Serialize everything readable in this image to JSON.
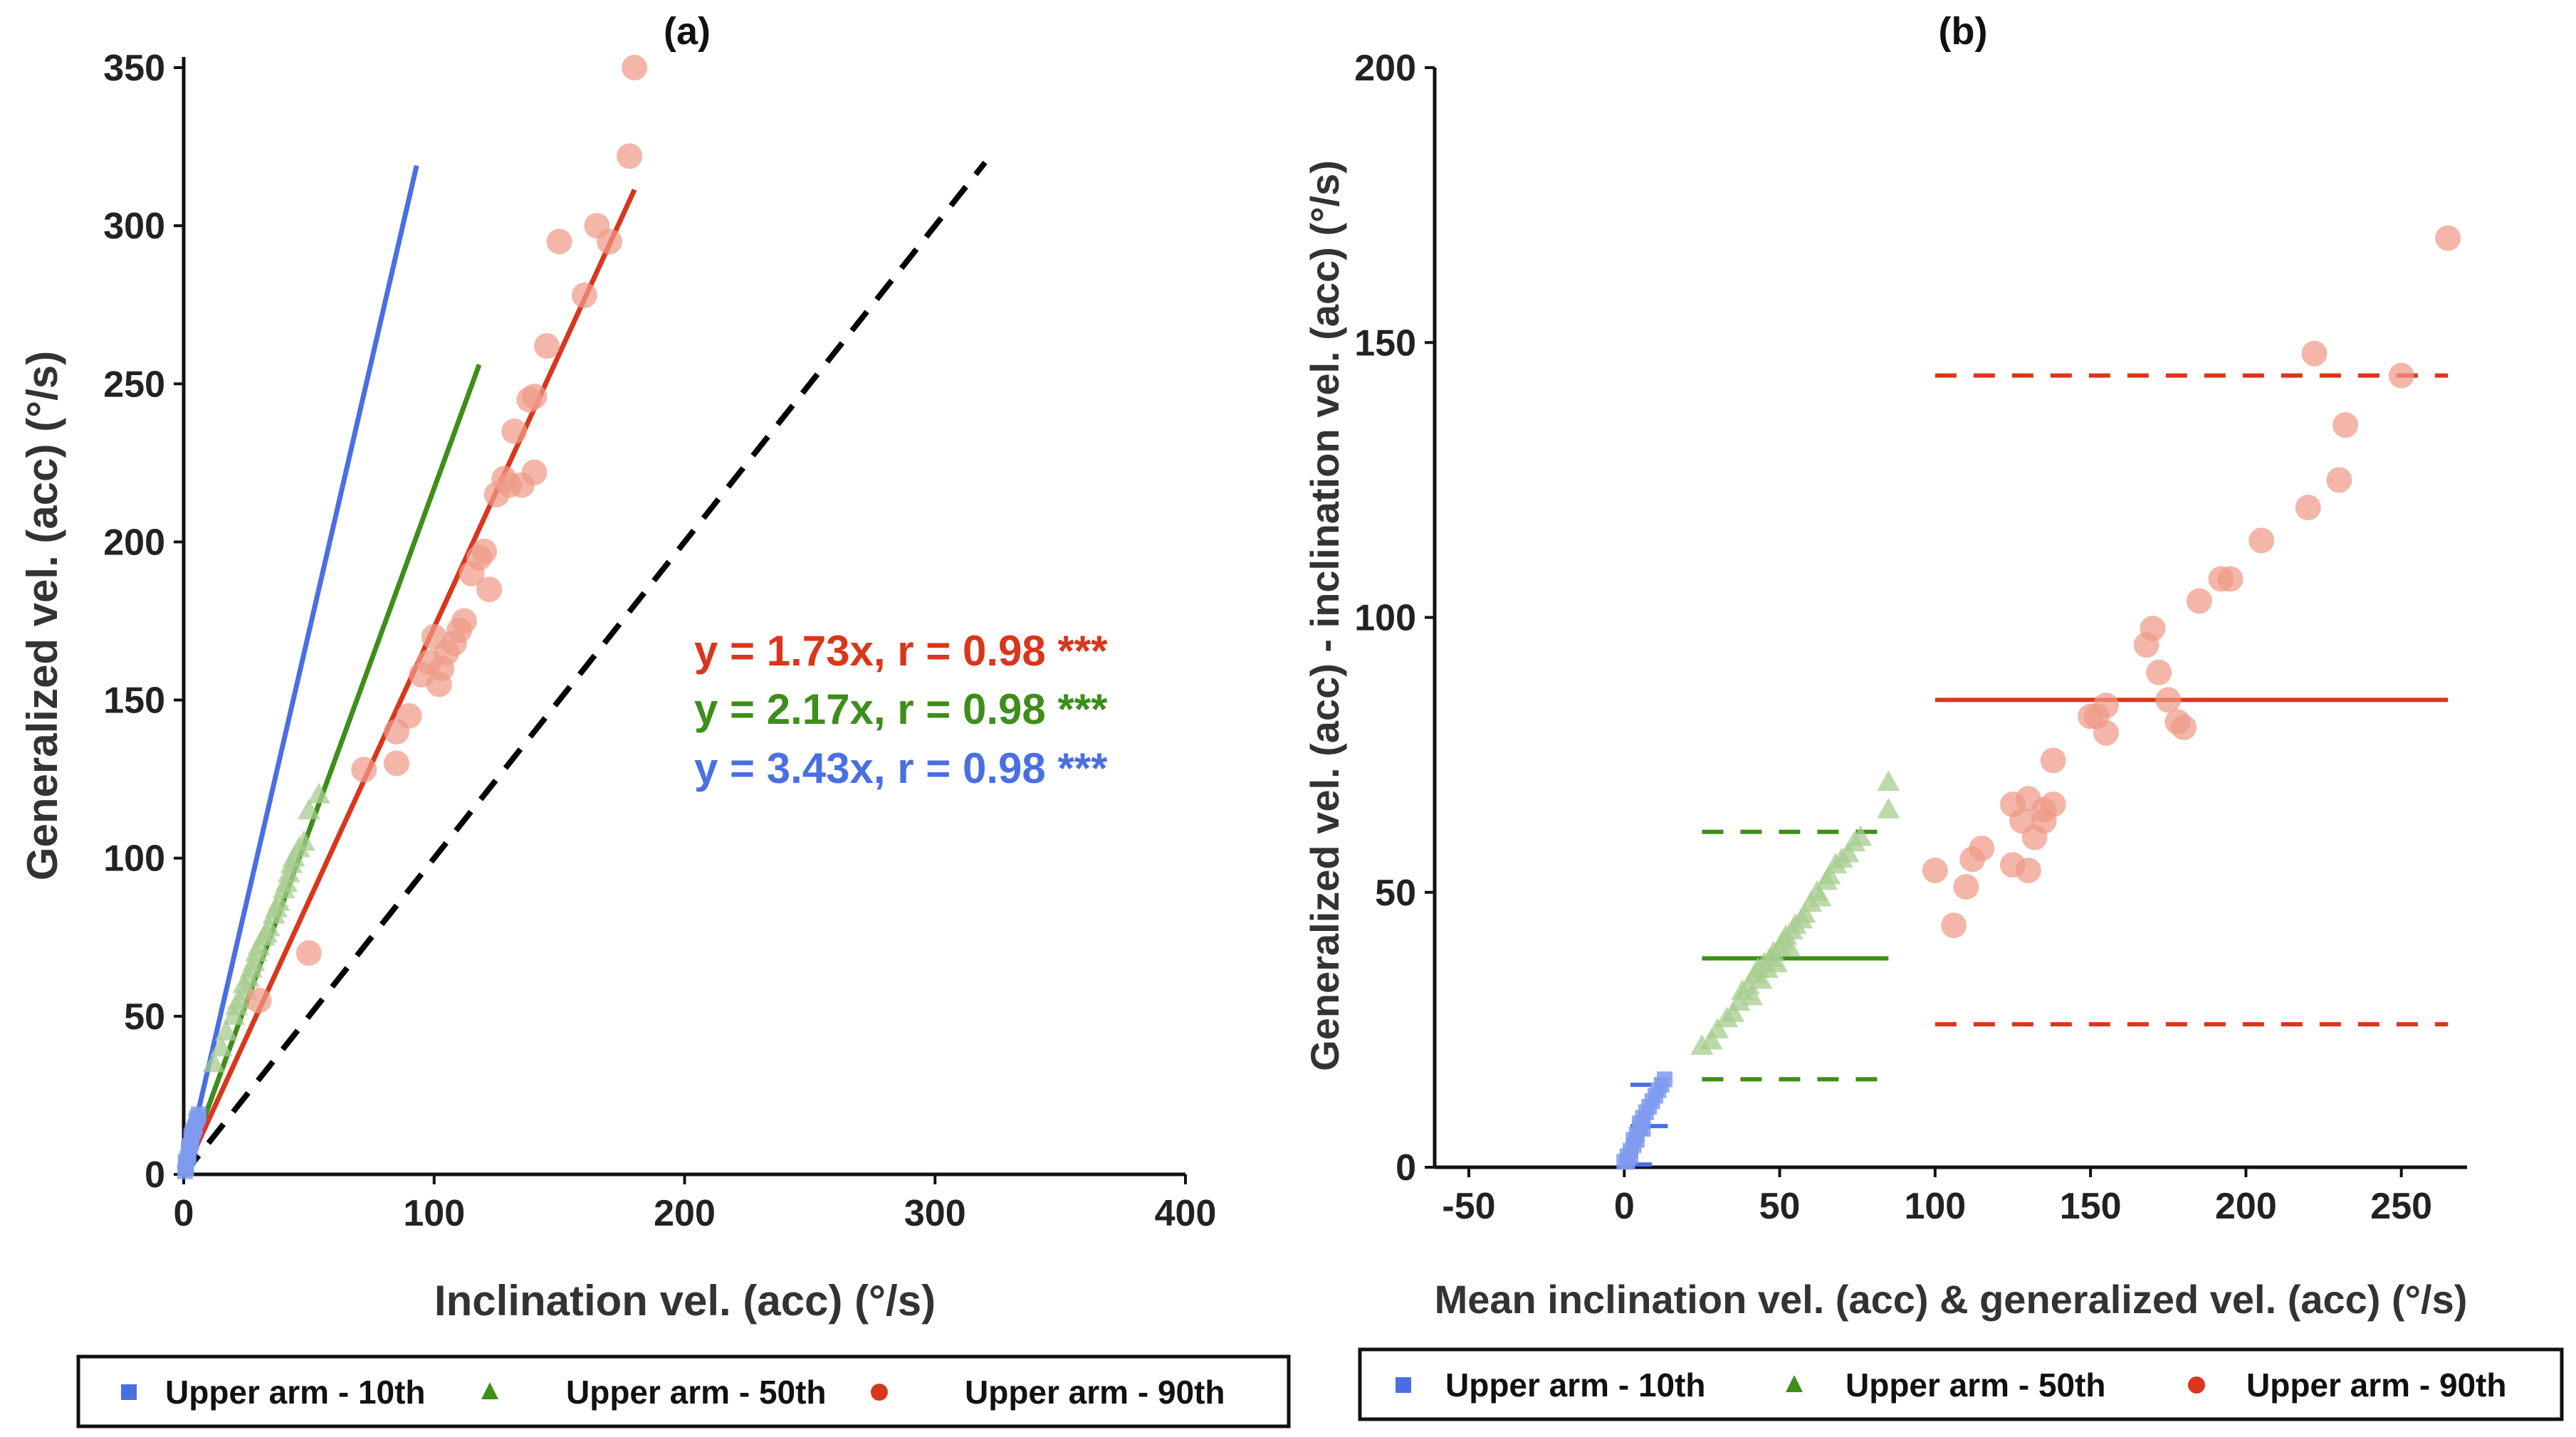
{
  "colors": {
    "blue": "#4A6FE3",
    "green": "#3E8E1A",
    "red": "#D9361C",
    "blue_light": "#7F9BEE",
    "green_light": "#A7CC8F",
    "red_light": "#EE9A88",
    "identity": "#000000",
    "axis": "#111111"
  },
  "legend": {
    "items": [
      {
        "label": "Upper arm - 10th",
        "marker": "square",
        "color": "#4A6FE3"
      },
      {
        "label": "Upper arm - 50th",
        "marker": "triangle",
        "color": "#3E8E1A"
      },
      {
        "label": "Upper arm - 90th",
        "marker": "circle",
        "color": "#D9361C"
      }
    ]
  },
  "chart_data": [
    {
      "id": "a",
      "type": "scatter",
      "title": "(a)",
      "xlabel": "Inclination vel. (acc) (°/s)",
      "ylabel": "Generalized vel. (acc) (°/s)",
      "xlim": [
        0,
        400
      ],
      "ylim": [
        0,
        350
      ],
      "xticks": [
        0,
        100,
        200,
        300,
        400
      ],
      "yticks": [
        0,
        50,
        100,
        150,
        200,
        250,
        300,
        350
      ],
      "annotations": [
        {
          "text": "y = 1.73x, r = 0.98 ***",
          "series": "Upper arm - 90th"
        },
        {
          "text": "y = 2.17x, r = 0.98 ***",
          "series": "Upper arm - 50th"
        },
        {
          "text": "y = 3.43x, r = 0.98 ***",
          "series": "Upper arm - 10th"
        }
      ],
      "identity_line": {
        "x": [
          0,
          320
        ],
        "y": [
          0,
          320
        ],
        "style": "dashed"
      },
      "series": [
        {
          "name": "Upper arm - 10th",
          "marker": "square",
          "fit": {
            "slope": 3.43,
            "x_range": [
              0,
              93
            ]
          },
          "points": [
            [
              0.5,
              1
            ],
            [
              1,
              3
            ],
            [
              1.5,
              5
            ],
            [
              2,
              6
            ],
            [
              2,
              8
            ],
            [
              3,
              10
            ],
            [
              3,
              12
            ],
            [
              4,
              14
            ],
            [
              4.5,
              15
            ],
            [
              5,
              17
            ],
            [
              1,
              2
            ],
            [
              2.5,
              9
            ],
            [
              3.5,
              13
            ],
            [
              0.8,
              4
            ],
            [
              5.5,
              18
            ],
            [
              6,
              19
            ]
          ]
        },
        {
          "name": "Upper arm - 50th",
          "marker": "triangle",
          "fit": {
            "slope": 2.17,
            "x_range": [
              0,
              118
            ]
          },
          "points": [
            [
              12,
              35
            ],
            [
              15,
              40
            ],
            [
              17,
              45
            ],
            [
              20,
              50
            ],
            [
              22,
              55
            ],
            [
              24,
              60
            ],
            [
              26,
              62
            ],
            [
              28,
              67
            ],
            [
              30,
              72
            ],
            [
              32,
              75
            ],
            [
              34,
              78
            ],
            [
              36,
              82
            ],
            [
              38,
              86
            ],
            [
              40,
              90
            ],
            [
              42,
              95
            ],
            [
              44,
              100
            ],
            [
              46,
              103
            ],
            [
              48,
              105
            ],
            [
              50,
              115
            ],
            [
              54,
              120
            ],
            [
              25,
              58
            ],
            [
              29,
              70
            ],
            [
              33,
              76
            ],
            [
              37,
              84
            ],
            [
              41,
              92
            ],
            [
              43,
              98
            ],
            [
              21,
              53
            ],
            [
              27,
              65
            ]
          ]
        },
        {
          "name": "Upper arm - 90th",
          "marker": "circle",
          "fit": {
            "slope": 1.73,
            "x_range": [
              0,
              180
            ]
          },
          "points": [
            [
              30,
              55
            ],
            [
              50,
              70
            ],
            [
              72,
              128
            ],
            [
              85,
              130
            ],
            [
              85,
              140
            ],
            [
              90,
              145
            ],
            [
              95,
              158
            ],
            [
              98,
              162
            ],
            [
              102,
              155
            ],
            [
              105,
              165
            ],
            [
              100,
              170
            ],
            [
              108,
              168
            ],
            [
              110,
              172
            ],
            [
              112,
              175
            ],
            [
              103,
              160
            ],
            [
              115,
              190
            ],
            [
              118,
              195
            ],
            [
              120,
              197
            ],
            [
              125,
              215
            ],
            [
              128,
              220
            ],
            [
              130,
              218
            ],
            [
              135,
              218
            ],
            [
              140,
              222
            ],
            [
              138,
              245
            ],
            [
              145,
              262
            ],
            [
              150,
              295
            ],
            [
              160,
              278
            ],
            [
              165,
              300
            ],
            [
              170,
              295
            ],
            [
              178,
              322
            ],
            [
              180,
              350
            ],
            [
              132,
              235
            ],
            [
              140,
              246
            ],
            [
              122,
              185
            ]
          ]
        }
      ]
    },
    {
      "id": "b",
      "type": "scatter",
      "title": "(b)",
      "xlabel": "Mean inclination vel. (acc) & generalized vel. (acc) (°/s)",
      "ylabel": "Generalized vel. (acc) - inclination vel. (acc) (°/s)",
      "xlim": [
        -50,
        270
      ],
      "ylim": [
        0,
        200
      ],
      "xticks": [
        -50,
        0,
        50,
        100,
        150,
        200,
        250
      ],
      "yticks": [
        0,
        50,
        100,
        150,
        200
      ],
      "series": [
        {
          "name": "Upper arm - 10th",
          "marker": "square",
          "mean": 7.5,
          "loa": [
            0.5,
            15
          ],
          "line_x_range": [
            2,
            14
          ],
          "points": [
            [
              0,
              1
            ],
            [
              1,
              2
            ],
            [
              2,
              3
            ],
            [
              3,
              4
            ],
            [
              3,
              5
            ],
            [
              4,
              6
            ],
            [
              5,
              7
            ],
            [
              5,
              8
            ],
            [
              6,
              9
            ],
            [
              7,
              10
            ],
            [
              8,
              11
            ],
            [
              9,
              12
            ],
            [
              10,
              13
            ],
            [
              11,
              14
            ],
            [
              12,
              15
            ],
            [
              13,
              16
            ],
            [
              2,
              2
            ],
            [
              4,
              5
            ],
            [
              6,
              7
            ],
            [
              1,
              1
            ]
          ]
        },
        {
          "name": "Upper arm - 50th",
          "marker": "triangle",
          "mean": 38,
          "loa": [
            16,
            61
          ],
          "line_x_range": [
            25,
            85
          ],
          "points": [
            [
              25,
              22
            ],
            [
              28,
              23
            ],
            [
              30,
              25
            ],
            [
              33,
              27
            ],
            [
              35,
              28
            ],
            [
              37,
              30
            ],
            [
              38,
              32
            ],
            [
              40,
              33
            ],
            [
              42,
              35
            ],
            [
              43,
              36
            ],
            [
              45,
              37
            ],
            [
              47,
              38
            ],
            [
              48,
              39
            ],
            [
              50,
              40
            ],
            [
              52,
              42
            ],
            [
              54,
              43
            ],
            [
              55,
              44
            ],
            [
              58,
              46
            ],
            [
              60,
              48
            ],
            [
              62,
              50
            ],
            [
              65,
              52
            ],
            [
              68,
              55
            ],
            [
              70,
              56
            ],
            [
              72,
              57
            ],
            [
              74,
              59
            ],
            [
              76,
              60
            ],
            [
              85,
              65
            ],
            [
              85,
              70
            ],
            [
              41,
              31
            ],
            [
              44,
              34
            ],
            [
              46,
              36
            ],
            [
              49,
              37
            ],
            [
              51,
              41
            ],
            [
              53,
              40
            ],
            [
              57,
              45
            ],
            [
              63,
              49
            ],
            [
              66,
              53
            ]
          ]
        },
        {
          "name": "Upper arm - 90th",
          "marker": "circle",
          "mean": 85,
          "loa": [
            26,
            144
          ],
          "line_x_range": [
            100,
            265
          ],
          "points": [
            [
              100,
              54
            ],
            [
              106,
              44
            ],
            [
              110,
              51
            ],
            [
              112,
              56
            ],
            [
              115,
              58
            ],
            [
              125,
              66
            ],
            [
              125,
              55
            ],
            [
              128,
              63
            ],
            [
              130,
              67
            ],
            [
              130,
              54
            ],
            [
              132,
              60
            ],
            [
              135,
              65
            ],
            [
              135,
              63
            ],
            [
              138,
              66
            ],
            [
              138,
              74
            ],
            [
              150,
              82
            ],
            [
              152,
              82
            ],
            [
              155,
              84
            ],
            [
              155,
              79
            ],
            [
              168,
              95
            ],
            [
              170,
              98
            ],
            [
              172,
              90
            ],
            [
              175,
              85
            ],
            [
              178,
              81
            ],
            [
              180,
              80
            ],
            [
              185,
              103
            ],
            [
              192,
              107
            ],
            [
              195,
              107
            ],
            [
              205,
              114
            ],
            [
              220,
              120
            ],
            [
              222,
              148
            ],
            [
              230,
              125
            ],
            [
              232,
              135
            ],
            [
              250,
              144
            ],
            [
              265,
              169
            ]
          ]
        }
      ]
    }
  ]
}
